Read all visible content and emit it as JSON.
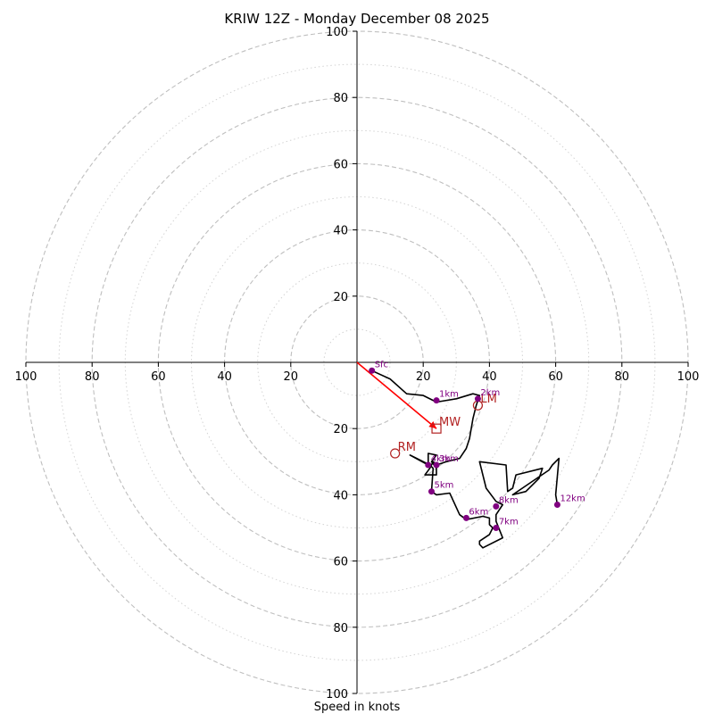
{
  "chart_data": {
    "type": "scatter",
    "title": "KRIW 12Z - Monday December 08 2025",
    "xlabel": "Speed in knots",
    "xlim": [
      -100,
      100
    ],
    "ylim": [
      -100,
      100
    ],
    "rings_major": [
      20,
      40,
      60,
      80,
      100
    ],
    "rings_minor": [
      10,
      30,
      50,
      70,
      90
    ],
    "x_tick_labels": [
      "100",
      "80",
      "60",
      "40",
      "20",
      "20",
      "40",
      "60",
      "80",
      "100"
    ],
    "x_tick_values": [
      -100,
      -80,
      -60,
      -40,
      -20,
      20,
      40,
      60,
      80,
      100
    ],
    "y_tick_labels_upper": [
      "20",
      "40",
      "60",
      "80",
      "100"
    ],
    "y_tick_values_upper": [
      20,
      40,
      60,
      80,
      100
    ],
    "y_tick_labels_lower": [
      "20",
      "40",
      "60",
      "80",
      "100"
    ],
    "y_tick_values_lower": [
      -20,
      -40,
      -60,
      -80,
      -100
    ],
    "hodograph": [
      [
        4.5,
        -2.5
      ],
      [
        10,
        -5
      ],
      [
        15,
        -9.5
      ],
      [
        20,
        -10
      ],
      [
        24,
        -12
      ],
      [
        30,
        -11
      ],
      [
        35,
        -9.5
      ],
      [
        37,
        -10
      ],
      [
        36,
        -13
      ],
      [
        35,
        -17
      ],
      [
        34,
        -23
      ],
      [
        33,
        -26
      ],
      [
        31,
        -29
      ],
      [
        27,
        -30
      ],
      [
        24,
        -31
      ],
      [
        23,
        -30
      ],
      [
        22,
        -32
      ],
      [
        20.5,
        -34
      ],
      [
        24,
        -34
      ],
      [
        24,
        -32
      ],
      [
        22.5,
        -30
      ],
      [
        24,
        -28
      ],
      [
        21.5,
        -27.5
      ],
      [
        21.5,
        -31
      ],
      [
        16,
        -28
      ],
      [
        22,
        -31
      ],
      [
        23,
        -32
      ],
      [
        22.5,
        -39
      ],
      [
        24,
        -40
      ],
      [
        28,
        -39.5
      ],
      [
        31,
        -46
      ],
      [
        33,
        -47.5
      ],
      [
        38,
        -46.5
      ],
      [
        40,
        -47
      ],
      [
        40,
        -49
      ],
      [
        41,
        -50
      ],
      [
        40,
        -52
      ],
      [
        37,
        -54
      ],
      [
        37,
        -55
      ],
      [
        38,
        -56
      ],
      [
        44,
        -53
      ],
      [
        42,
        -48
      ],
      [
        42,
        -46
      ],
      [
        44,
        -43
      ],
      [
        42,
        -42
      ],
      [
        39,
        -38
      ],
      [
        37,
        -30
      ],
      [
        45,
        -31
      ],
      [
        45.5,
        -39
      ],
      [
        47,
        -38
      ],
      [
        48,
        -34
      ],
      [
        56,
        -32
      ],
      [
        55,
        -35
      ],
      [
        51,
        -39
      ],
      [
        47,
        -40
      ],
      [
        58,
        -32.5
      ],
      [
        59,
        -31
      ],
      [
        61,
        -29
      ],
      [
        60,
        -40
      ],
      [
        60.5,
        -43
      ]
    ],
    "height_markers": [
      {
        "label": "Sfc",
        "x": 4.5,
        "y": -2.5
      },
      {
        "label": "1km",
        "x": 24,
        "y": -11.5
      },
      {
        "label": "2km",
        "x": 36.5,
        "y": -11
      },
      {
        "label": "3km",
        "x": 24,
        "y": -31
      },
      {
        "label": "4km",
        "x": 21.5,
        "y": -31
      },
      {
        "label": "5km",
        "x": 22.5,
        "y": -39
      },
      {
        "label": "6km",
        "x": 33,
        "y": -47
      },
      {
        "label": "7km",
        "x": 42,
        "y": -50
      },
      {
        "label": "8km",
        "x": 42,
        "y": -43.5
      },
      {
        "label": "12km",
        "x": 60.5,
        "y": -43
      }
    ],
    "storm_motion": {
      "LM": {
        "label": "LM",
        "x": 36.5,
        "y": -13
      },
      "RM": {
        "label": "RM",
        "x": 11.5,
        "y": -27.5
      },
      "MW": {
        "label": "MW",
        "x": 24,
        "y": -20
      },
      "shear_vector": {
        "from": [
          0,
          0
        ],
        "to": [
          24,
          -20
        ]
      }
    },
    "colors": {
      "hodograph": "#000000",
      "markers": "#800080",
      "storm_motion": "#b22222",
      "shear_arrow": "#ff0000",
      "rings": "#bfbfbf"
    }
  }
}
